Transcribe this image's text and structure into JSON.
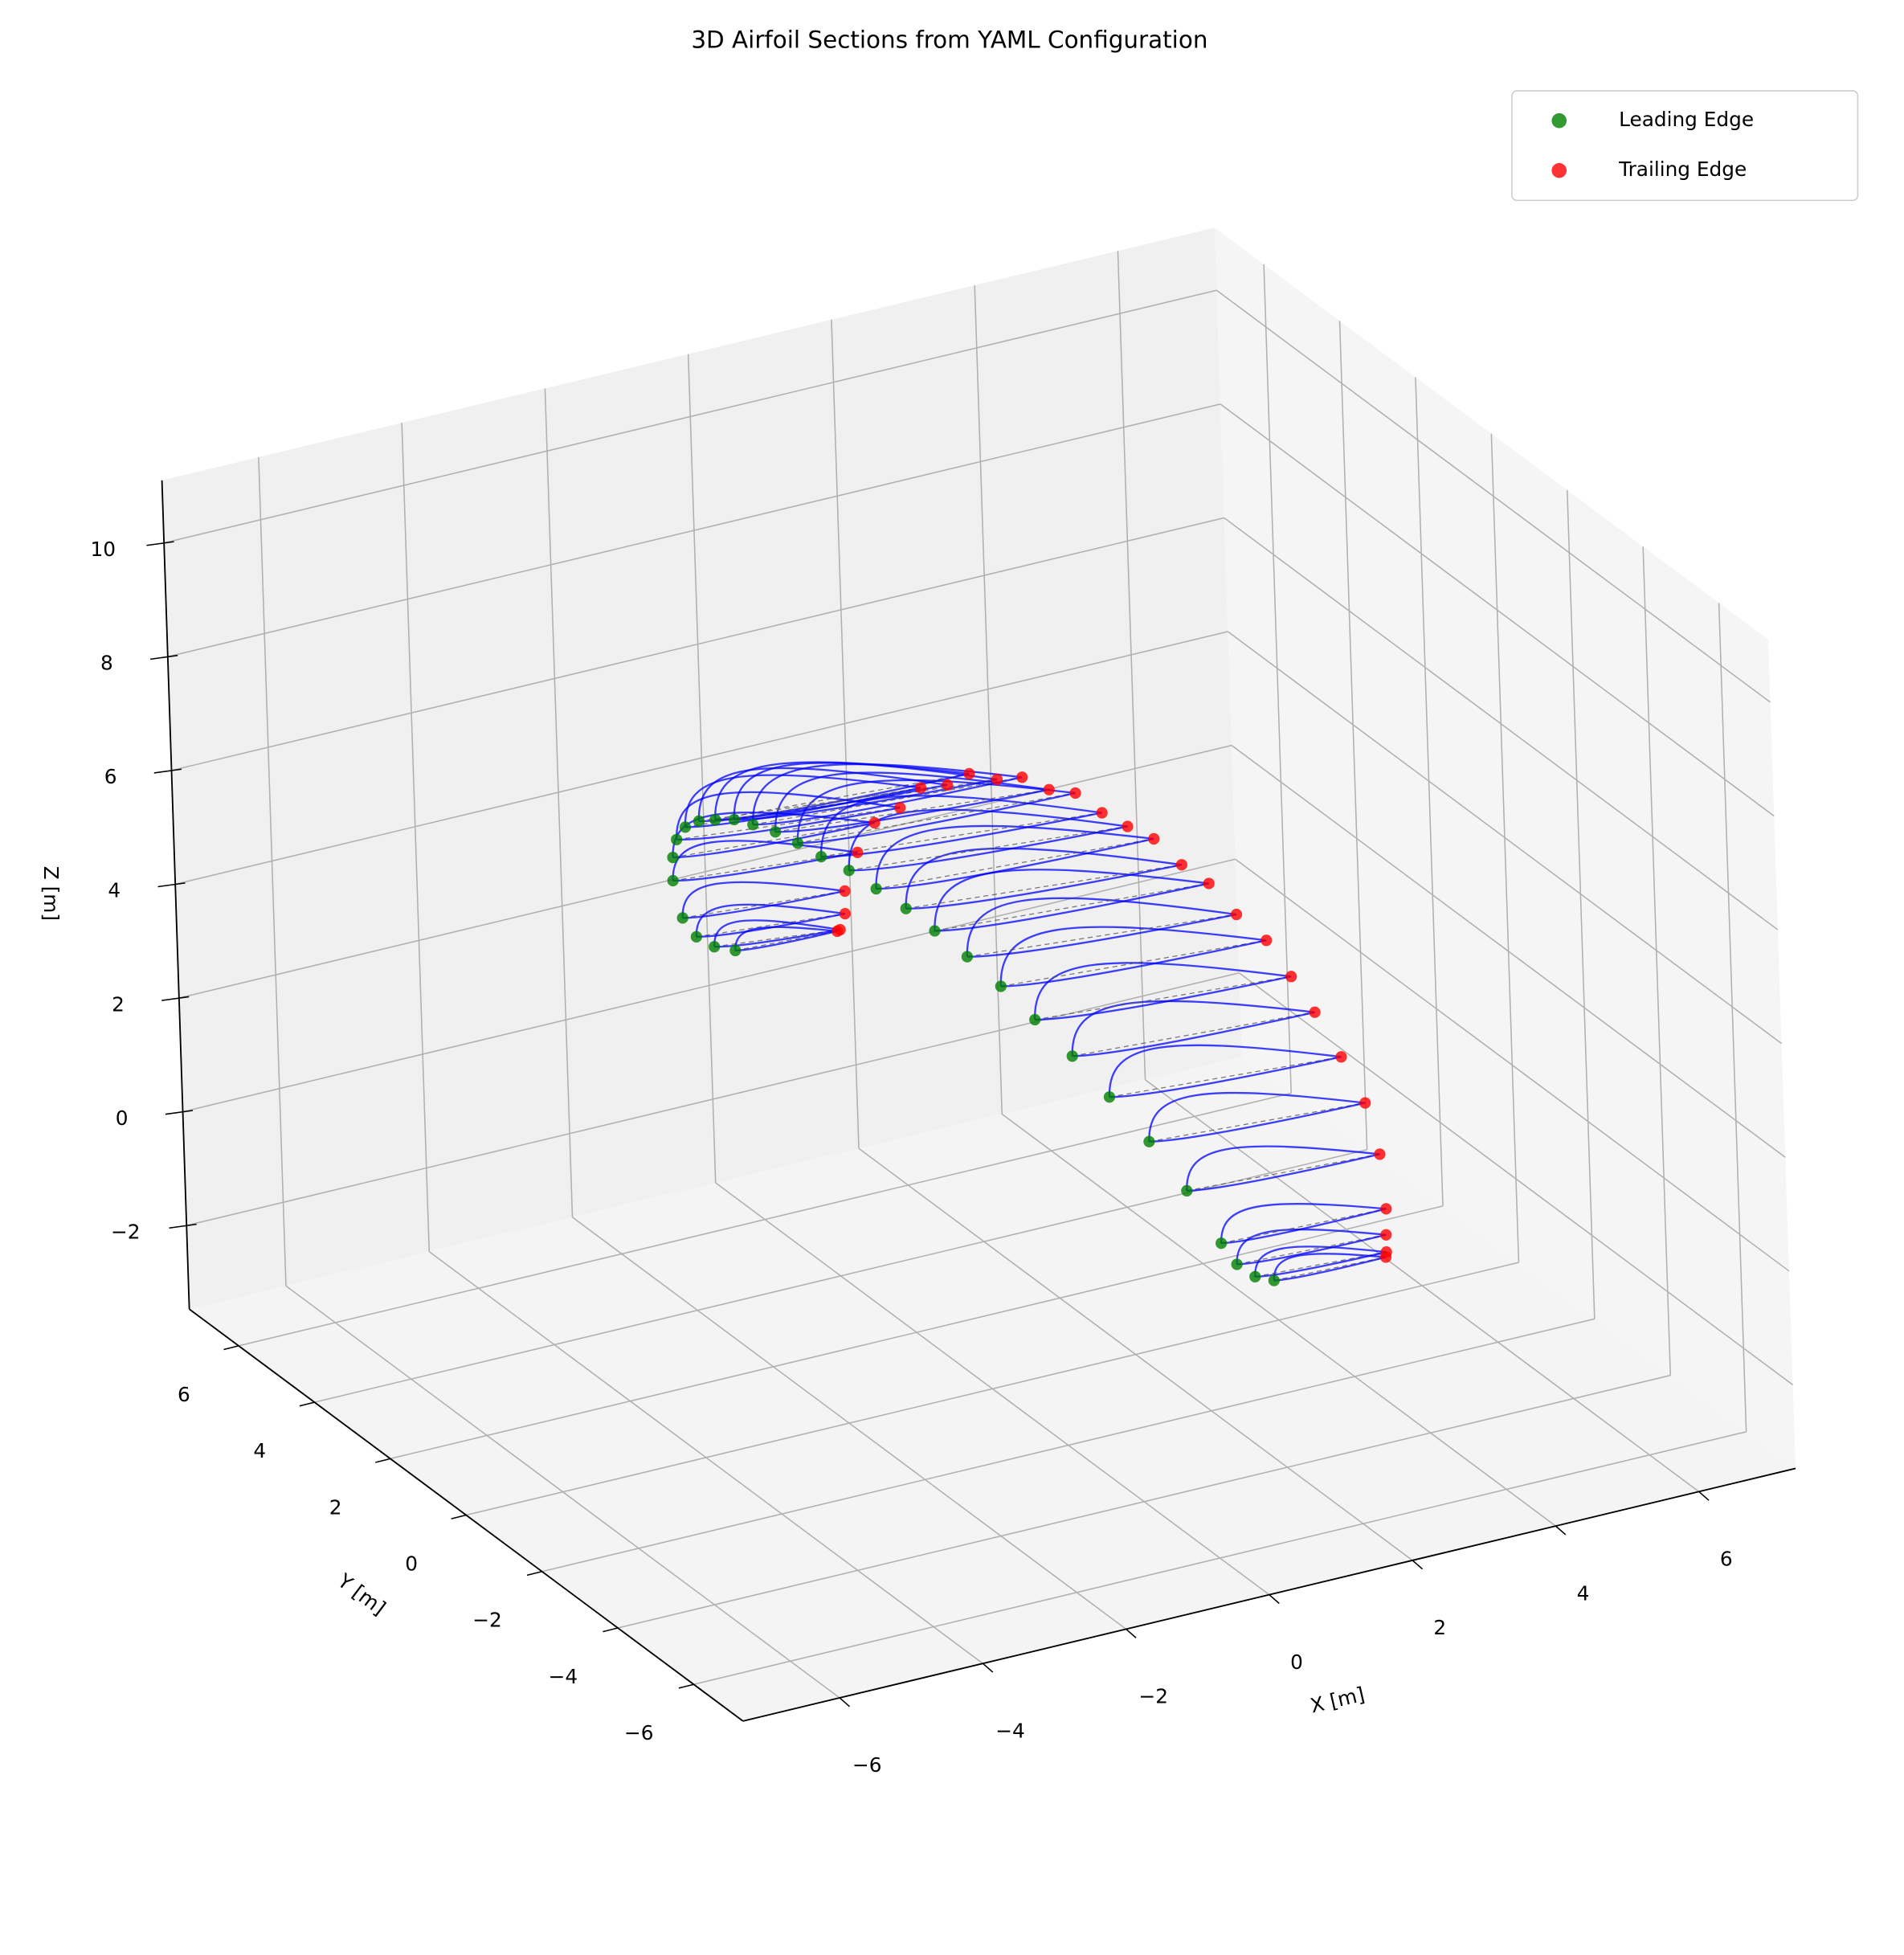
{
  "chart_data": {
    "type": "scatter3d",
    "title": "3D Airfoil Sections from YAML Configuration",
    "xlabel": "X [m]",
    "ylabel": "Y [m]",
    "zlabel": "Z [m]",
    "xlim": [
      -7.35,
      7.35
    ],
    "ylim": [
      -7.3,
      7.3
    ],
    "zlim": [
      -3.47,
      11.1
    ],
    "xticks": [
      {
        "value": -6,
        "label": "−6"
      },
      {
        "value": -4,
        "label": "−4"
      },
      {
        "value": -2,
        "label": "−2"
      },
      0,
      2,
      4,
      6
    ],
    "yticks": [
      {
        "value": -6,
        "label": "−6"
      },
      {
        "value": -4,
        "label": "−4"
      },
      {
        "value": -2,
        "label": "−2"
      },
      0,
      2,
      4,
      6
    ],
    "zticks": [
      {
        "value": -2,
        "label": "−2"
      },
      0,
      2,
      4,
      6,
      8,
      10
    ],
    "grid": true,
    "legend": "upper right",
    "series": [
      {
        "name": "Leading Edge",
        "color": "green",
        "x": [
          0.62,
          0.38,
          0.19,
          0.08,
          -0.24,
          -0.57,
          -0.9,
          -1.16,
          -1.4,
          -1.57,
          -1.71,
          -1.82,
          -1.87,
          -1.92,
          -1.93,
          -1.95,
          -1.91,
          -1.86,
          -1.83,
          -1.76,
          -1.71,
          -1.65,
          -1.58,
          -1.47,
          -1.33,
          -1.17,
          -0.92,
          -0.64,
          -0.34,
          -0.03
        ],
        "y": [
          -6.5,
          -6.46,
          -6.35,
          -6.16,
          -5.9,
          -5.57,
          -5.18,
          -4.72,
          -4.21,
          -3.65,
          -3.04,
          -2.4,
          -1.74,
          -1.05,
          -0.35,
          0.35,
          1.05,
          1.74,
          2.4,
          3.04,
          3.65,
          4.21,
          4.72,
          5.18,
          5.57,
          5.9,
          6.16,
          6.35,
          6.46,
          6.5
        ],
        "z": [
          1.47,
          1.59,
          1.81,
          2.12,
          3.01,
          3.81,
          4.5,
          5.07,
          5.53,
          5.89,
          6.15,
          6.32,
          6.4,
          6.42,
          6.4,
          6.3,
          6.18,
          6.02,
          5.81,
          5.56,
          5.24,
          4.92,
          4.54,
          4.06,
          3.51,
          2.89,
          2.03,
          1.52,
          1.2,
          1.02
        ]
      },
      {
        "name": "Trailing Edge",
        "color": "red",
        "x": [
          2.18,
          2.21,
          2.27,
          2.38,
          2.45,
          2.44,
          2.33,
          2.22,
          2.17,
          2.13,
          2.04,
          2.0,
          1.97,
          1.95,
          1.95,
          1.96,
          1.96,
          1.95,
          1.92,
          1.9,
          1.83,
          1.81,
          1.7,
          1.64,
          1.48,
          1.4,
          1.34,
          1.43,
          1.41,
          1.39
        ],
        "y": [
          -6.5,
          -6.46,
          -6.35,
          -6.16,
          -5.9,
          -5.57,
          -5.18,
          -4.72,
          -4.21,
          -3.65,
          -3.04,
          -2.4,
          -1.74,
          -1.05,
          -0.35,
          0.35,
          1.05,
          1.74,
          2.4,
          3.04,
          3.65,
          4.21,
          4.72,
          5.18,
          5.57,
          5.9,
          6.16,
          6.35,
          6.46,
          6.5
        ],
        "z": [
          1.41,
          1.47,
          1.7,
          2.03,
          2.84,
          3.58,
          4.23,
          4.82,
          5.21,
          5.58,
          5.76,
          6.0,
          6.01,
          6.13,
          6.0,
          5.89,
          5.89,
          5.61,
          5.51,
          5.16,
          4.98,
          4.51,
          4.24,
          3.68,
          3.27,
          2.61,
          1.82,
          1.3,
          0.97,
          0.93
        ]
      }
    ]
  }
}
